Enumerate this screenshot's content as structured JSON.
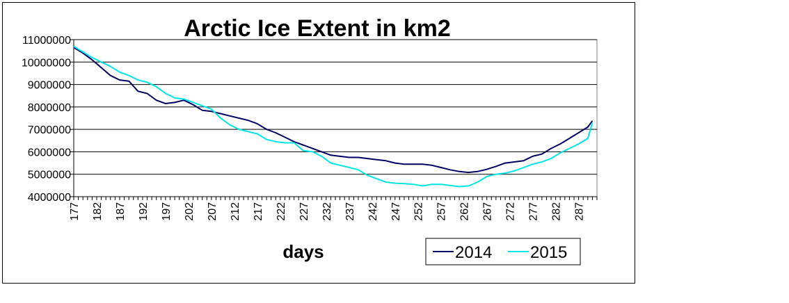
{
  "chart_data": {
    "type": "line",
    "title": "Arctic Ice Extent in km2",
    "xlabel": "days",
    "ylabel": "",
    "xlim": [
      177,
      291
    ],
    "ylim": [
      4000000,
      11000000
    ],
    "x_ticks": [
      177,
      182,
      187,
      192,
      197,
      202,
      207,
      212,
      217,
      222,
      227,
      232,
      237,
      242,
      247,
      252,
      257,
      262,
      267,
      272,
      277,
      282,
      287
    ],
    "y_ticks": [
      4000000,
      5000000,
      6000000,
      7000000,
      8000000,
      9000000,
      10000000,
      11000000
    ],
    "grid": "horizontal",
    "legend_position": "bottom-right",
    "colors": {
      "2014": "#000066",
      "2015": "#00e6e6"
    },
    "series": [
      {
        "name": "2014",
        "x": [
          177,
          179,
          181,
          183,
          185,
          187,
          189,
          191,
          193,
          195,
          197,
          199,
          201,
          203,
          205,
          207,
          209,
          211,
          213,
          215,
          217,
          219,
          221,
          223,
          225,
          227,
          229,
          231,
          233,
          235,
          237,
          239,
          241,
          243,
          245,
          247,
          249,
          251,
          253,
          255,
          257,
          259,
          261,
          263,
          265,
          267,
          269,
          271,
          273,
          275,
          277,
          279,
          281,
          283,
          285,
          287,
          289,
          290
        ],
        "values": [
          10650000,
          10400000,
          10100000,
          9750000,
          9400000,
          9200000,
          9150000,
          8700000,
          8600000,
          8300000,
          8150000,
          8200000,
          8300000,
          8100000,
          7850000,
          7800000,
          7700000,
          7600000,
          7500000,
          7400000,
          7250000,
          7000000,
          6850000,
          6650000,
          6450000,
          6300000,
          6150000,
          6000000,
          5850000,
          5800000,
          5750000,
          5750000,
          5700000,
          5650000,
          5600000,
          5500000,
          5450000,
          5450000,
          5450000,
          5400000,
          5300000,
          5200000,
          5120000,
          5080000,
          5120000,
          5220000,
          5350000,
          5500000,
          5550000,
          5600000,
          5800000,
          5900000,
          6150000,
          6350000,
          6600000,
          6850000,
          7100000,
          7380000
        ]
      },
      {
        "name": "2015",
        "x": [
          177,
          179,
          181,
          183,
          185,
          187,
          189,
          191,
          193,
          195,
          197,
          199,
          201,
          203,
          205,
          207,
          209,
          211,
          213,
          215,
          217,
          219,
          221,
          223,
          225,
          227,
          229,
          231,
          233,
          235,
          237,
          239,
          241,
          243,
          245,
          247,
          249,
          251,
          253,
          255,
          257,
          259,
          261,
          263,
          265,
          267,
          269,
          271,
          273,
          275,
          277,
          279,
          281,
          283,
          285,
          287,
          289,
          290
        ],
        "values": [
          10700000,
          10450000,
          10200000,
          10000000,
          9800000,
          9550000,
          9400000,
          9200000,
          9100000,
          8900000,
          8600000,
          8400000,
          8350000,
          8200000,
          8050000,
          7900000,
          7500000,
          7200000,
          7000000,
          6900000,
          6800000,
          6550000,
          6450000,
          6400000,
          6400000,
          6050000,
          6000000,
          5800000,
          5500000,
          5400000,
          5300000,
          5200000,
          4950000,
          4800000,
          4650000,
          4600000,
          4580000,
          4550000,
          4480000,
          4550000,
          4550000,
          4500000,
          4450000,
          4480000,
          4650000,
          4900000,
          5000000,
          5050000,
          5150000,
          5300000,
          5450000,
          5550000,
          5700000,
          5950000,
          6150000,
          6350000,
          6600000,
          7300000
        ]
      }
    ]
  }
}
